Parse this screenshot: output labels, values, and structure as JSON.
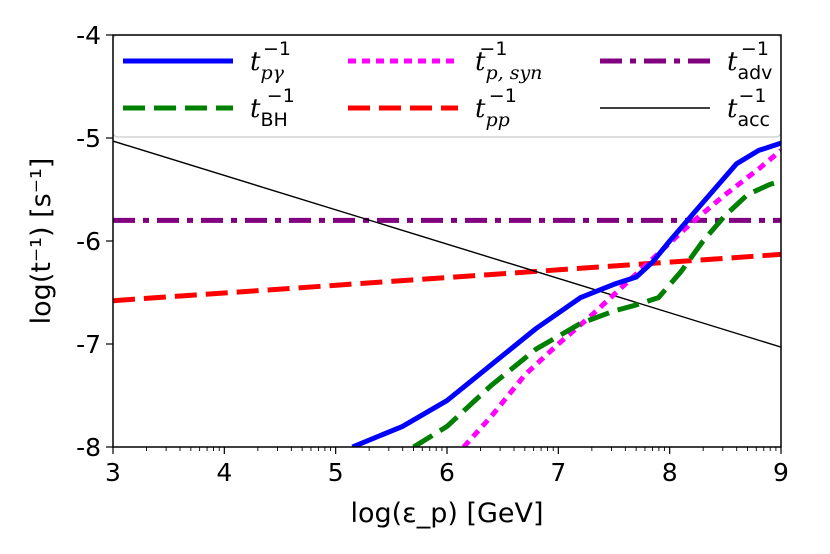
{
  "chart_data": {
    "type": "line",
    "title": "",
    "xlabel": "log(ε_p) [GeV]",
    "ylabel": "log(t⁻¹) [s⁻¹]",
    "xlim": [
      3,
      9
    ],
    "ylim": [
      -8,
      -4
    ],
    "xticks": [
      3,
      4,
      5,
      6,
      7,
      8,
      9
    ],
    "xtick_labels": [
      "3",
      "4",
      "5",
      "6",
      "7",
      "8",
      "9"
    ],
    "yticks": [
      -4,
      -5,
      -6,
      -7,
      -8
    ],
    "ytick_labels": [
      "-4",
      "-5",
      "-6",
      "-7",
      "-8"
    ],
    "legend_position": "top",
    "grid": false,
    "series": [
      {
        "name": "t_pγ^-1",
        "color": "#0000ff",
        "style": "solid",
        "x": [
          5.15,
          5.6,
          6.0,
          6.4,
          6.8,
          7.2,
          7.5,
          7.7,
          7.85,
          8.0,
          8.2,
          8.4,
          8.6,
          8.8,
          9.0
        ],
        "y": [
          -8.0,
          -7.8,
          -7.55,
          -7.2,
          -6.85,
          -6.55,
          -6.42,
          -6.35,
          -6.2,
          -6.0,
          -5.75,
          -5.5,
          -5.25,
          -5.12,
          -5.05
        ]
      },
      {
        "name": "t_BH^-1",
        "color": "#008000",
        "style": "dashed",
        "x": [
          5.7,
          6.0,
          6.4,
          6.8,
          7.2,
          7.5,
          7.7,
          7.9,
          8.1,
          8.3,
          8.5,
          8.7,
          8.9,
          9.0
        ],
        "y": [
          -8.0,
          -7.8,
          -7.4,
          -7.05,
          -6.8,
          -6.68,
          -6.62,
          -6.55,
          -6.3,
          -6.0,
          -5.75,
          -5.55,
          -5.45,
          -5.42
        ]
      },
      {
        "name": "t_p,syn^-1",
        "color": "#ff00ff",
        "style": "dotted",
        "x": [
          6.15,
          6.4,
          6.7,
          7.0,
          7.3,
          7.6,
          7.9,
          8.2,
          8.5,
          8.8,
          9.0
        ],
        "y": [
          -8.0,
          -7.7,
          -7.3,
          -7.0,
          -6.72,
          -6.42,
          -6.12,
          -5.82,
          -5.55,
          -5.3,
          -5.12
        ]
      },
      {
        "name": "t_pp^-1",
        "color": "#ff0000",
        "style": "dashed",
        "x": [
          3,
          9
        ],
        "y": [
          -6.58,
          -6.13
        ]
      },
      {
        "name": "t_adv^-1",
        "color": "#800080",
        "style": "dashdot",
        "x": [
          3,
          9
        ],
        "y": [
          -5.8,
          -5.8
        ]
      },
      {
        "name": "t_acc^-1",
        "color": "#000000",
        "style": "thin-solid",
        "x": [
          3,
          9
        ],
        "y": [
          -5.03,
          -7.03
        ]
      }
    ]
  },
  "legend": {
    "entries": [
      {
        "key": "pgamma",
        "base": "t",
        "sub": "pγ",
        "sup": "−1",
        "color": "#0000ff",
        "style": "solid"
      },
      {
        "key": "psyn",
        "base": "t",
        "sub": "p, syn",
        "sup": "−1",
        "color": "#ff00ff",
        "style": "dotted"
      },
      {
        "key": "adv",
        "base": "t",
        "sub": "adv",
        "sup": "−1",
        "color": "#800080",
        "style": "dashdot"
      },
      {
        "key": "bh",
        "base": "t",
        "sub": "BH",
        "sup": "−1",
        "color": "#008000",
        "style": "dashed"
      },
      {
        "key": "pp",
        "base": "t",
        "sub": "pp",
        "sup": "−1",
        "color": "#ff0000",
        "style": "dashed"
      },
      {
        "key": "acc",
        "base": "t",
        "sub": "acc",
        "sup": "−1",
        "color": "#000000",
        "style": "thin-solid"
      }
    ]
  }
}
